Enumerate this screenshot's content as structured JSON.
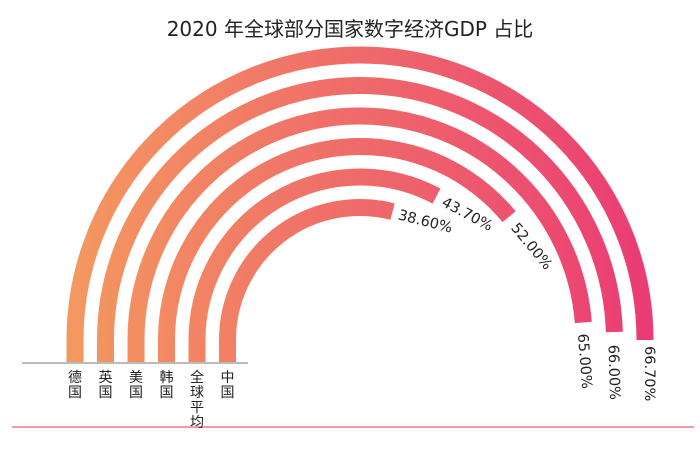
{
  "chart_data": {
    "type": "radial-bar",
    "title": "2020 年全球部分国家数字经济GDP 占比",
    "categories": [
      "德国",
      "英国",
      "美国",
      "韩国",
      "全球平均",
      "中国"
    ],
    "values": [
      66.7,
      66.0,
      65.0,
      52.0,
      43.7,
      38.6
    ],
    "value_labels": [
      "66.70%",
      "66.00%",
      "65.00%",
      "52.00%",
      "43.70%",
      "38.60%"
    ],
    "value_max": 100,
    "gradient_colors": [
      "#f49a5f",
      "#ea3a74"
    ],
    "baseline_color": "#f29ba6",
    "legend": "none"
  }
}
